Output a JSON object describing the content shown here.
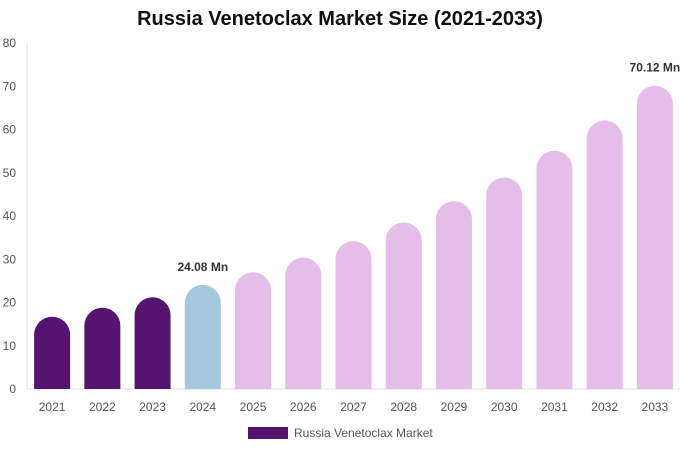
{
  "chart_data": {
    "type": "bar",
    "title": "Russia Venetoclax Market Size (2021-2033)",
    "xlabel": "",
    "ylabel": "",
    "ylim": [
      0,
      80
    ],
    "yticks": [
      0,
      10,
      20,
      30,
      40,
      50,
      60,
      70,
      80
    ],
    "categories": [
      "2021",
      "2022",
      "2023",
      "2024",
      "2025",
      "2026",
      "2027",
      "2028",
      "2029",
      "2030",
      "2031",
      "2032",
      "2033"
    ],
    "series": [
      {
        "name": "Russia Venetoclax Market",
        "values": [
          16.7,
          18.8,
          21.2,
          24.08,
          27.0,
          30.4,
          34.2,
          38.5,
          43.4,
          48.9,
          55.1,
          62.1,
          70.12
        ]
      }
    ],
    "bar_colors": [
      "#541470",
      "#541470",
      "#541470",
      "#a3c8dd",
      "#e5bde9",
      "#e5bde9",
      "#e5bde9",
      "#e5bde9",
      "#e5bde9",
      "#e5bde9",
      "#e5bde9",
      "#e5bde9",
      "#e5bde9"
    ],
    "data_labels": [
      {
        "category": "2024",
        "text": "24.08 Mn"
      },
      {
        "category": "2033",
        "text": "70.12 Mn"
      }
    ],
    "legend": {
      "position": "bottom",
      "label": "Russia Venetoclax Market",
      "color": "#541470"
    },
    "grid": false
  }
}
